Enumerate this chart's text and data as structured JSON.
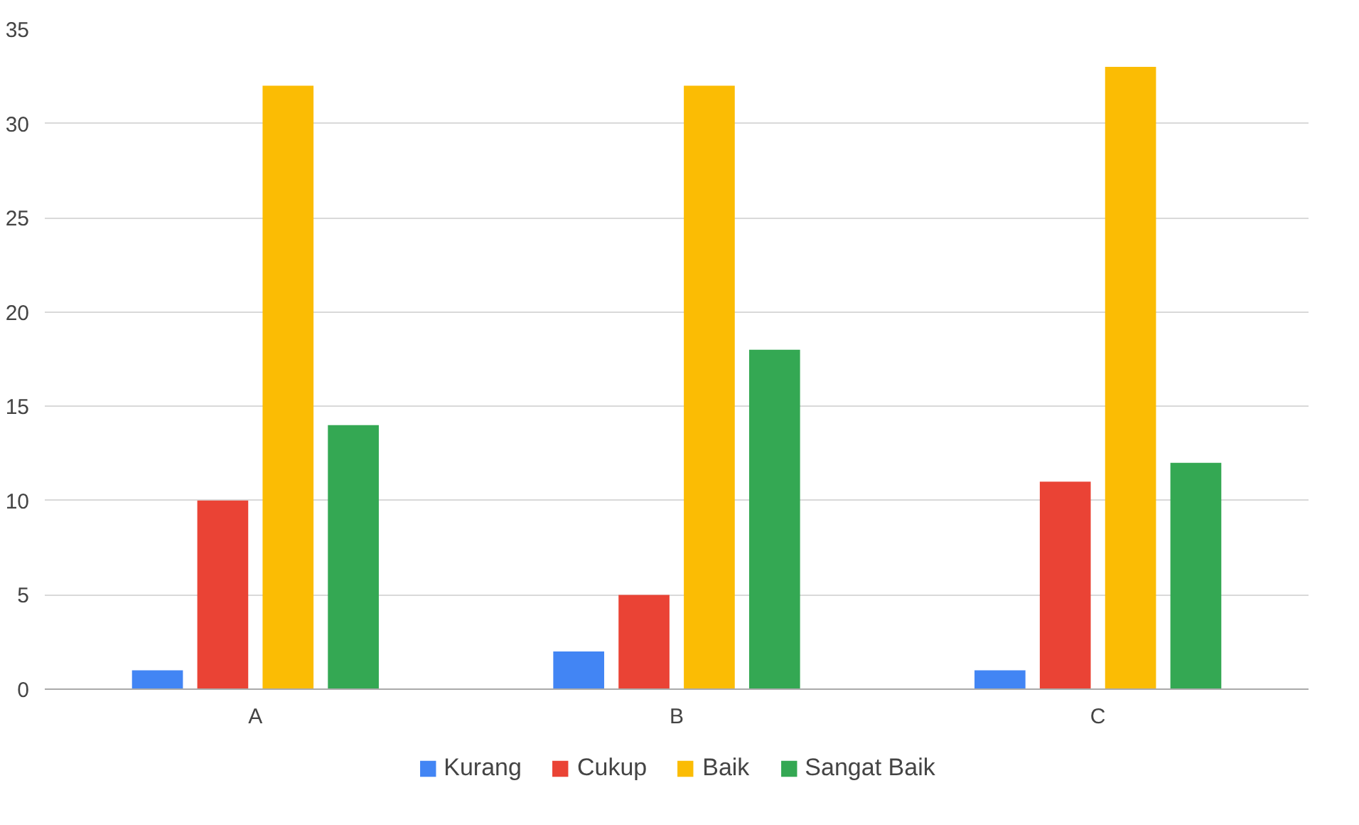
{
  "chart_data": {
    "type": "bar",
    "categories": [
      "A",
      "B",
      "C"
    ],
    "series": [
      {
        "name": "Kurang",
        "color": "#4285f4",
        "values": [
          1,
          2,
          1
        ]
      },
      {
        "name": "Cukup",
        "color": "#ea4335",
        "values": [
          10,
          5,
          11
        ]
      },
      {
        "name": "Baik",
        "color": "#fbbc04",
        "values": [
          32,
          32,
          33
        ]
      },
      {
        "name": "Sangat Baik",
        "color": "#34a853",
        "values": [
          14,
          18,
          12
        ]
      }
    ],
    "ylim": [
      0,
      35
    ],
    "yticks": [
      0,
      5,
      10,
      15,
      20,
      25,
      30,
      35
    ],
    "grid": "y",
    "legend": "bottom"
  }
}
